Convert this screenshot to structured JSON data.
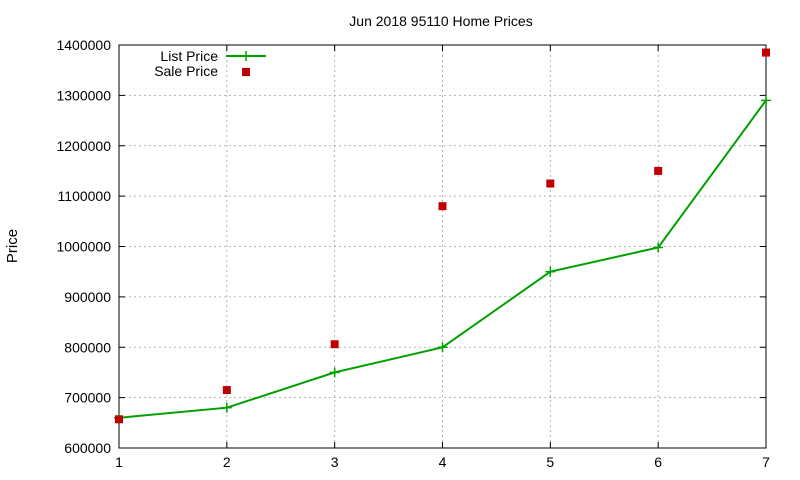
{
  "chart_data": {
    "type": "line",
    "title": "Jun 2018 95110 Home Prices",
    "xlabel": "",
    "ylabel": "Price",
    "x": [
      1,
      2,
      3,
      4,
      5,
      6,
      7
    ],
    "xlim": [
      1,
      7
    ],
    "ylim": [
      600000,
      1400000
    ],
    "xticks": [
      "1",
      "2",
      "3",
      "4",
      "5",
      "6",
      "7"
    ],
    "yticks": [
      "600000",
      "700000",
      "800000",
      "900000",
      "1000000",
      "1100000",
      "1200000",
      "1300000",
      "1400000"
    ],
    "grid": true,
    "legend_position": "top-left",
    "series": [
      {
        "name": "List Price",
        "style": "linespoints",
        "marker": "plus",
        "color": "#00a000",
        "values": [
          660000,
          680000,
          750000,
          800000,
          950000,
          998000,
          1290000
        ]
      },
      {
        "name": "Sale Price",
        "style": "points",
        "marker": "square",
        "color": "#c00000",
        "values": [
          657000,
          715000,
          806000,
          1080000,
          1125000,
          1150000,
          1385000
        ]
      }
    ]
  }
}
